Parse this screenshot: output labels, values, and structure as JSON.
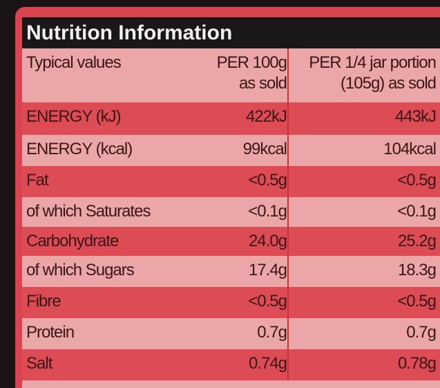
{
  "title": "Nutrition Information",
  "table": {
    "header": [
      "Typical values",
      "PER 100g as sold",
      "PER 1/4 jar portion (105g) as sold"
    ],
    "rows": [
      [
        "ENERGY (kJ)",
        "422kJ",
        "443kJ"
      ],
      [
        "ENERGY (kcal)",
        "99kcal",
        "104kcal"
      ],
      [
        "Fat",
        "<0.5g",
        "<0.5g"
      ],
      [
        "of which Saturates",
        "<0.1g",
        "<0.1g"
      ],
      [
        "Carbohydrate",
        "24.0g",
        "25.2g"
      ],
      [
        "of which Sugars",
        "17.4g",
        "18.3g"
      ],
      [
        "Fibre",
        "<0.5g",
        "<0.5g"
      ],
      [
        "Protein",
        "0.7g",
        "0.7g"
      ],
      [
        "Salt",
        "0.74g",
        "0.78g"
      ]
    ]
  }
}
